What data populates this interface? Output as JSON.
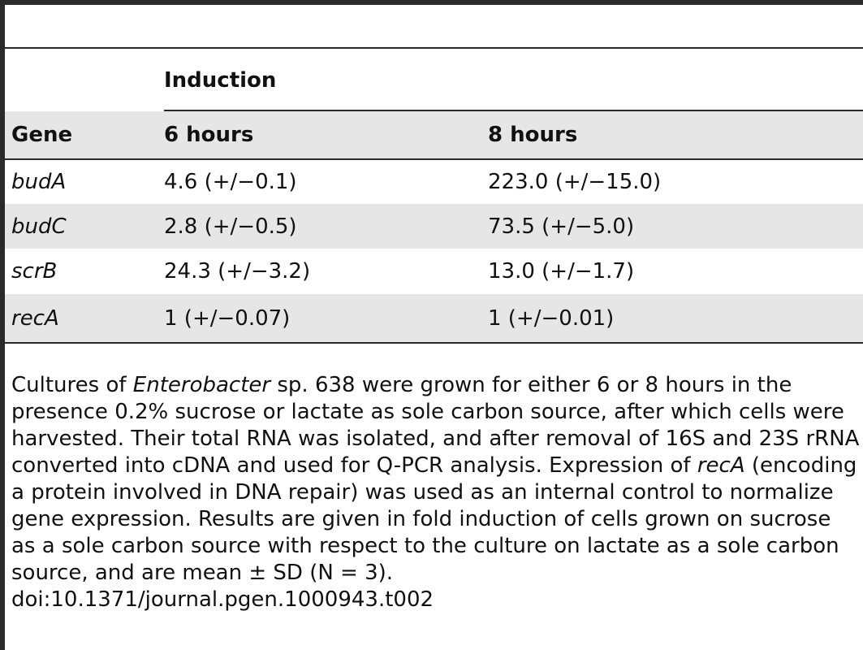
{
  "table": {
    "group_header": "Induction",
    "columns": [
      "Gene",
      "6 hours",
      "8 hours"
    ],
    "rows": [
      {
        "gene": "budA",
        "h6": "4.6 (+/−0.1)",
        "h8": "223.0 (+/−15.0)"
      },
      {
        "gene": "budC",
        "h6": "2.8 (+/−0.5)",
        "h8": "73.5 (+/−5.0)"
      },
      {
        "gene": "scrB",
        "h6": "24.3 (+/−3.2)",
        "h8": "13.0 (+/−1.7)"
      },
      {
        "gene": "recA",
        "h6": "1 (+/−0.07)",
        "h8": "1 (+/−0.01)"
      }
    ]
  },
  "footnote": {
    "part1": "Cultures of ",
    "organism": "Enterobacter",
    "part2": " sp. 638 were grown for either 6 or 8 hours in the presence 0.2% sucrose or lactate as sole carbon source, after which cells were harvested. Their total RNA was isolated, and after removal of 16S and 23S rRNA converted into cDNA and used for Q-PCR analysis. Expression of ",
    "gene": "recA",
    "part3": " (encoding a protein involved in DNA repair) was used as an internal control to normalize gene expression. Results are given in fold induction of cells grown on sucrose as a sole carbon source with respect to the culture on lactate as a sole carbon source, and are mean ± SD (N = 3).",
    "doi": "doi:10.1371/journal.pgen.1000943.t002"
  }
}
